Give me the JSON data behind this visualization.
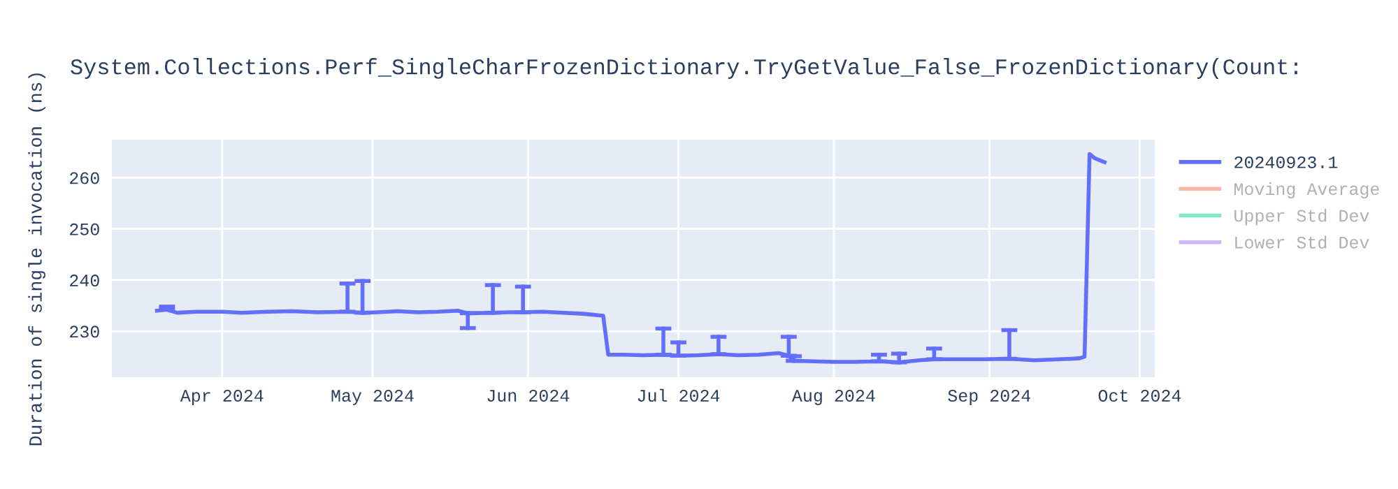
{
  "chart_data": {
    "type": "line",
    "title": "System.Collections.Perf_SingleCharFrozenDictionary.TryGetValue_False_FrozenDictionary(Count:",
    "ylabel": "Duration of single invocation (ns)",
    "xlim": [
      "2024-03-10",
      "2024-10-04"
    ],
    "xticks": [
      {
        "value": "2024-04-01",
        "label": "Apr 2024"
      },
      {
        "value": "2024-05-01",
        "label": "May 2024"
      },
      {
        "value": "2024-06-01",
        "label": "Jun 2024"
      },
      {
        "value": "2024-07-01",
        "label": "Jul 2024"
      },
      {
        "value": "2024-08-01",
        "label": "Aug 2024"
      },
      {
        "value": "2024-09-01",
        "label": "Sep 2024"
      },
      {
        "value": "2024-10-01",
        "label": "Oct 2024"
      }
    ],
    "ylim": [
      221,
      267.4
    ],
    "yticks": [
      230,
      240,
      250,
      260
    ],
    "grid": true,
    "legend": "right",
    "marker": "none",
    "line_style": "solid",
    "series": [
      {
        "name": "20240923.1",
        "color": "#636efa",
        "x": [
          "2024-03-19",
          "2024-03-21",
          "2024-03-23",
          "2024-03-27",
          "2024-04-01",
          "2024-04-05",
          "2024-04-10",
          "2024-04-15",
          "2024-04-20",
          "2024-04-26",
          "2024-04-29",
          "2024-05-02",
          "2024-05-06",
          "2024-05-10",
          "2024-05-14",
          "2024-05-18",
          "2024-05-20",
          "2024-05-25",
          "2024-05-28",
          "2024-05-31",
          "2024-06-04",
          "2024-06-08",
          "2024-06-12",
          "2024-06-16",
          "2024-06-17",
          "2024-06-20",
          "2024-06-24",
          "2024-06-28",
          "2024-07-01",
          "2024-07-05",
          "2024-07-09",
          "2024-07-13",
          "2024-07-17",
          "2024-07-21",
          "2024-07-23",
          "2024-07-24",
          "2024-07-28",
          "2024-08-01",
          "2024-08-05",
          "2024-08-10",
          "2024-08-14",
          "2024-08-18",
          "2024-08-21",
          "2024-08-26",
          "2024-08-31",
          "2024-09-05",
          "2024-09-10",
          "2024-09-15",
          "2024-09-19",
          "2024-09-20",
          "2024-09-21",
          "2024-09-22",
          "2024-09-24"
        ],
        "values": [
          234.0,
          234.2,
          233.6,
          233.8,
          233.8,
          233.6,
          233.8,
          233.9,
          233.7,
          233.8,
          233.6,
          233.7,
          233.9,
          233.7,
          233.8,
          234.0,
          233.5,
          233.6,
          233.7,
          233.7,
          233.8,
          233.6,
          233.4,
          233.0,
          225.4,
          225.4,
          225.3,
          225.4,
          225.2,
          225.3,
          225.5,
          225.3,
          225.4,
          225.7,
          225.2,
          224.2,
          224.1,
          224.0,
          224.0,
          224.1,
          223.9,
          224.3,
          224.5,
          224.5,
          224.5,
          224.6,
          224.3,
          224.5,
          224.7,
          225.0,
          264.6,
          263.8,
          263.0
        ],
        "errors": [
          null,
          [
            234.2,
            234.8
          ],
          null,
          null,
          null,
          null,
          null,
          null,
          null,
          [
            233.8,
            239.3
          ],
          [
            233.6,
            239.8
          ],
          null,
          null,
          null,
          null,
          null,
          [
            230.6,
            233.5
          ],
          [
            233.6,
            239.0
          ],
          null,
          [
            233.7,
            238.7
          ],
          null,
          null,
          null,
          null,
          null,
          null,
          null,
          [
            225.4,
            230.5
          ],
          [
            225.2,
            227.8
          ],
          null,
          [
            225.5,
            228.9
          ],
          null,
          null,
          null,
          [
            225.2,
            228.9
          ],
          [
            224.2,
            225.1
          ],
          null,
          null,
          null,
          [
            224.1,
            225.4
          ],
          [
            223.9,
            225.6
          ],
          null,
          [
            224.5,
            226.6
          ],
          null,
          null,
          [
            224.6,
            230.2
          ],
          null,
          null,
          null,
          null,
          null,
          null,
          null
        ]
      },
      {
        "name": "Moving Average",
        "color": "#f9b6a4"
      },
      {
        "name": "Upper Std Dev",
        "color": "#80e8c4"
      },
      {
        "name": "Lower Std Dev",
        "color": "#d0b7f7"
      }
    ]
  }
}
